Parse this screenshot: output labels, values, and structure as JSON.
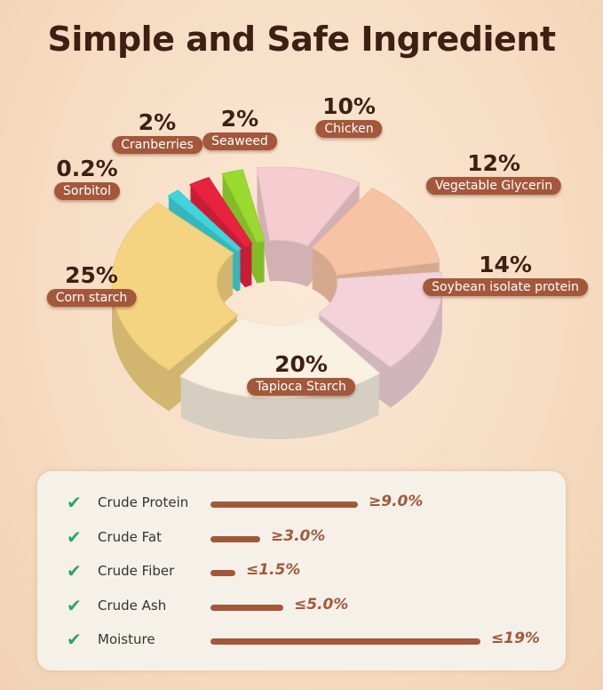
{
  "title": "Simple and Safe Ingredient",
  "chart_data": {
    "type": "pie",
    "title": "Simple and Safe Ingredient",
    "style": "3d-donut",
    "slices": [
      {
        "label": "Chicken",
        "value": 10,
        "display": "10%",
        "color": "#f5cdd0"
      },
      {
        "label": "Vegetable Glycerin",
        "value": 12,
        "display": "12%",
        "color": "#f6c4a5"
      },
      {
        "label": "Soybean isolate protein",
        "value": 14,
        "display": "14%",
        "color": "#f3d2da"
      },
      {
        "label": "Tapioca Starch",
        "value": 20,
        "display": "20%",
        "color": "#f8f0e0"
      },
      {
        "label": "Corn starch",
        "value": 25,
        "display": "25%",
        "color": "#f4d481"
      },
      {
        "label": "Sorbitol",
        "value": 0.2,
        "display": "0.2%",
        "color": "#3fd5da"
      },
      {
        "label": "Cranberries",
        "value": 2,
        "display": "2%",
        "color": "#e8223f"
      },
      {
        "label": "Seaweed",
        "value": 2,
        "display": "2%",
        "color": "#9ad930"
      }
    ]
  },
  "nutrition": [
    {
      "name": "Crude Protein",
      "value": "≥9.0%",
      "level": 9.0
    },
    {
      "name": "Crude Fat",
      "value": "≥3.0%",
      "level": 3.0
    },
    {
      "name": "Crude Fiber",
      "value": "≤1.5%",
      "level": 1.5
    },
    {
      "name": "Crude Ash",
      "value": "≤5.0%",
      "level": 5.0
    },
    {
      "name": "Moisture",
      "value": "≤19%",
      "level": 19
    }
  ],
  "icons": {
    "check": "check-icon"
  },
  "colors": {
    "accent": "#a3583b",
    "title": "#3e1f14",
    "check": "#2aa66b"
  }
}
